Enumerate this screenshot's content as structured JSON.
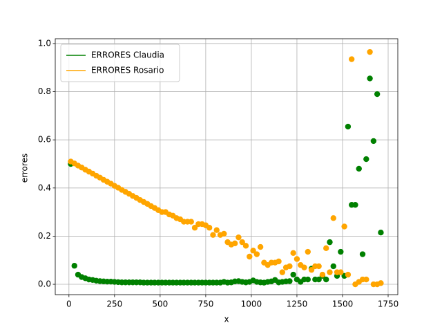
{
  "chart_data": {
    "type": "scatter",
    "xlabel": "x",
    "ylabel": "errores",
    "xlim": [
      -75,
      1803
    ],
    "ylim": [
      -0.043,
      1.02
    ],
    "xticks": [
      0,
      250,
      500,
      750,
      1000,
      1250,
      1500,
      1750
    ],
    "yticks": [
      {
        "value": 0,
        "label": "0.0"
      },
      0.2,
      0.4,
      0.6,
      0.8,
      {
        "value": 1,
        "label": "1.0"
      }
    ],
    "grid": true,
    "legend": "upper-left",
    "x": [
      10,
      30,
      50,
      70,
      90,
      110,
      130,
      150,
      170,
      190,
      210,
      230,
      250,
      270,
      290,
      310,
      330,
      350,
      370,
      390,
      410,
      430,
      450,
      470,
      490,
      510,
      530,
      550,
      570,
      590,
      610,
      630,
      650,
      670,
      690,
      710,
      730,
      750,
      770,
      790,
      810,
      830,
      850,
      870,
      890,
      910,
      930,
      950,
      970,
      990,
      1010,
      1030,
      1050,
      1070,
      1090,
      1110,
      1130,
      1150,
      1170,
      1190,
      1210,
      1230,
      1250,
      1270,
      1290,
      1310,
      1330,
      1350,
      1370,
      1390,
      1410,
      1430,
      1450,
      1470,
      1490,
      1510,
      1530,
      1550,
      1570,
      1590,
      1610,
      1630,
      1650,
      1670,
      1690,
      1710
    ],
    "series": [
      {
        "name": "ERRORES Claudia",
        "color": "green",
        "values": [
          0.5,
          0.077,
          0.04,
          0.03,
          0.025,
          0.02,
          0.018,
          0.015,
          0.013,
          0.012,
          0.011,
          0.011,
          0.01,
          0.009,
          0.008,
          0.008,
          0.008,
          0.008,
          0.008,
          0.008,
          0.007,
          0.007,
          0.007,
          0.007,
          0.007,
          0.007,
          0.007,
          0.007,
          0.007,
          0.007,
          0.007,
          0.007,
          0.007,
          0.007,
          0.007,
          0.007,
          0.007,
          0.007,
          0.007,
          0.007,
          0.007,
          0.007,
          0.01,
          0.007,
          0.008,
          0.012,
          0.013,
          0.01,
          0.008,
          0.01,
          0.016,
          0.01,
          0.008,
          0.007,
          0.01,
          0.012,
          0.018,
          0.008,
          0.01,
          0.012,
          0.013,
          0.04,
          0.02,
          0.01,
          0.02,
          0.02,
          0.065,
          0.02,
          0.02,
          0.035,
          0.02,
          0.175,
          0.075,
          0.035,
          0.135,
          0.035,
          0.655,
          0.33,
          0.33,
          0.48,
          0.125,
          0.52,
          0.855,
          0.595,
          0.79,
          0.215
        ]
      },
      {
        "name": "ERRORES Rosario",
        "color": "orange",
        "values": [
          0.51,
          0.502,
          0.493,
          0.485,
          0.476,
          0.468,
          0.46,
          0.451,
          0.443,
          0.434,
          0.426,
          0.418,
          0.409,
          0.401,
          0.392,
          0.384,
          0.376,
          0.367,
          0.359,
          0.35,
          0.342,
          0.334,
          0.325,
          0.317,
          0.308,
          0.3,
          0.3,
          0.29,
          0.285,
          0.275,
          0.27,
          0.26,
          0.26,
          0.26,
          0.235,
          0.25,
          0.25,
          0.245,
          0.235,
          0.205,
          0.225,
          0.205,
          0.21,
          0.175,
          0.165,
          0.17,
          0.195,
          0.175,
          0.16,
          0.115,
          0.14,
          0.125,
          0.155,
          0.09,
          0.08,
          0.09,
          0.09,
          0.095,
          0.05,
          0.07,
          0.075,
          0.13,
          0.105,
          0.08,
          0.07,
          0.135,
          0.06,
          0.075,
          0.075,
          0.04,
          0.15,
          0.05,
          0.275,
          0.05,
          0.05,
          0.24,
          0.04,
          0.935,
          0,
          0.01,
          0.02,
          0.02,
          0.965,
          0,
          0,
          0.005
        ]
      }
    ]
  }
}
